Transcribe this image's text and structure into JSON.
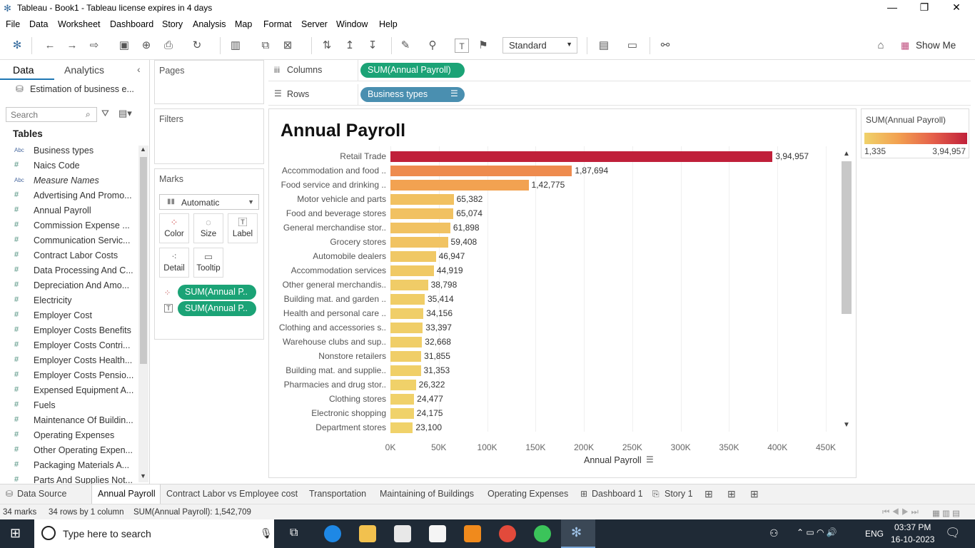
{
  "window": {
    "title": "Tableau - Book1 - Tableau license expires in 4 days"
  },
  "menu": [
    "File",
    "Data",
    "Worksheet",
    "Dashboard",
    "Story",
    "Analysis",
    "Map",
    "Format",
    "Server",
    "Window",
    "Help"
  ],
  "toolbar": {
    "fit": "Standard",
    "show_me": "Show Me"
  },
  "left_pane": {
    "tab_data": "Data",
    "tab_analytics": "Analytics",
    "datasource": "Estimation of business e...",
    "search_placeholder": "Search",
    "tables_header": "Tables",
    "fields": [
      {
        "icon": "Abc",
        "name": "Business types"
      },
      {
        "icon": "#",
        "name": "Naics Code"
      },
      {
        "icon": "Abc",
        "name": "Measure Names"
      },
      {
        "icon": "#",
        "name": "Advertising And Promo..."
      },
      {
        "icon": "#",
        "name": "Annual Payroll"
      },
      {
        "icon": "#",
        "name": "Commission Expense ..."
      },
      {
        "icon": "#",
        "name": "Communication Servic..."
      },
      {
        "icon": "#",
        "name": "Contract Labor Costs"
      },
      {
        "icon": "#",
        "name": "Data Processing And C..."
      },
      {
        "icon": "#",
        "name": "Depreciation And Amo..."
      },
      {
        "icon": "#",
        "name": "Electricity"
      },
      {
        "icon": "#",
        "name": "Employer Cost"
      },
      {
        "icon": "#",
        "name": "Employer Costs Benefits"
      },
      {
        "icon": "#",
        "name": "Employer Costs Contri..."
      },
      {
        "icon": "#",
        "name": "Employer Costs Health..."
      },
      {
        "icon": "#",
        "name": "Employer Costs Pensio..."
      },
      {
        "icon": "#",
        "name": "Expensed Equipment A..."
      },
      {
        "icon": "#",
        "name": "Fuels"
      },
      {
        "icon": "#",
        "name": "Maintenance Of Buildin..."
      },
      {
        "icon": "#",
        "name": "Operating Expenses"
      },
      {
        "icon": "#",
        "name": "Other Operating Expen..."
      },
      {
        "icon": "#",
        "name": "Packaging Materials A..."
      },
      {
        "icon": "#",
        "name": "Parts And Supplies Not..."
      }
    ]
  },
  "cards": {
    "pages": "Pages",
    "filters": "Filters",
    "marks": "Marks",
    "mark_type": "Automatic",
    "color": "Color",
    "size": "Size",
    "label": "Label",
    "detail": "Detail",
    "tooltip": "Tooltip",
    "pill1": "SUM(Annual P..",
    "pill2": "SUM(Annual P.."
  },
  "shelves": {
    "columns_label": "Columns",
    "columns_pill": "SUM(Annual Payroll)",
    "rows_label": "Rows",
    "rows_pill": "Business types"
  },
  "legend": {
    "title": "SUM(Annual Payroll)",
    "min": "1,335",
    "max": "3,94,957"
  },
  "chart_data": {
    "type": "bar",
    "title": "Annual Payroll",
    "xlabel": "Annual Payroll",
    "xlim": [
      0,
      450000
    ],
    "xticks": [
      "0K",
      "50K",
      "100K",
      "150K",
      "200K",
      "250K",
      "300K",
      "350K",
      "400K",
      "450K"
    ],
    "categories": [
      "Retail Trade",
      "Accommodation and food ..",
      "Food service and drinking ..",
      "Motor vehicle and parts",
      "Food and beverage stores",
      "General merchandise stor..",
      "Grocery stores",
      "Automobile dealers",
      "Accommodation services",
      "Other general merchandis..",
      "Building mat. and garden ..",
      "Health and personal care ..",
      "Clothing and accessories s..",
      "Warehouse clubs and sup..",
      "Nonstore retailers",
      "Building mat. and supplie..",
      "Pharmacies and drug stor..",
      "Clothing stores",
      "Electronic shopping",
      "Department stores"
    ],
    "values": [
      394957,
      187694,
      142775,
      65382,
      65074,
      61898,
      59408,
      46947,
      44919,
      38798,
      35414,
      34156,
      33397,
      32668,
      31855,
      31353,
      26322,
      24477,
      24175,
      23100
    ],
    "labels": [
      "3,94,957",
      "1,87,694",
      "1,42,775",
      "65,382",
      "65,074",
      "61,898",
      "59,408",
      "46,947",
      "44,919",
      "38,798",
      "35,414",
      "34,156",
      "33,397",
      "32,668",
      "31,855",
      "31,353",
      "26,322",
      "24,477",
      "24,175",
      "23,100"
    ],
    "color_range": [
      "#f0d26a",
      "#c0203a"
    ]
  },
  "sheets": [
    "Data Source",
    "Annual Payroll",
    "Contract Labor vs Employee cost",
    "Transportation",
    "Maintaining of Buildings",
    "Operating Expenses",
    "Dashboard 1",
    "Story 1"
  ],
  "status": {
    "marks": "34 marks",
    "rows": "34 rows by 1 column",
    "sum": "SUM(Annual Payroll): 1,542,709"
  },
  "taskbar": {
    "search": "Type here to search",
    "lang": "ENG",
    "time": "03:37 PM",
    "date": "16-10-2023"
  }
}
